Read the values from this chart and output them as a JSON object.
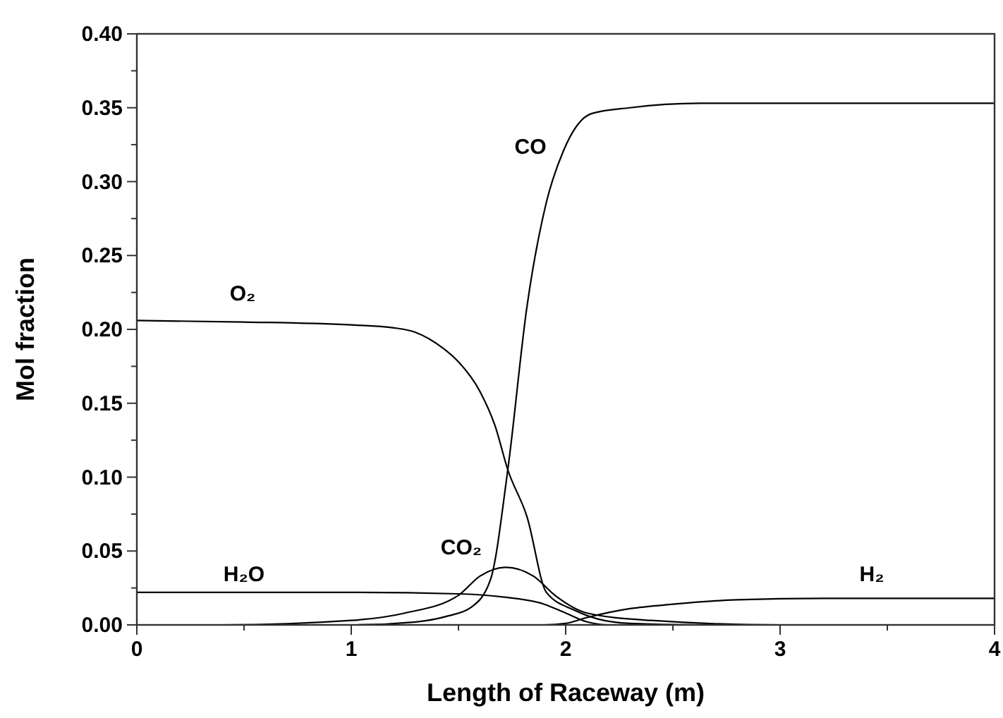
{
  "chart_data": {
    "type": "line",
    "xlabel": "Length of Raceway (m)",
    "ylabel": "Mol fraction",
    "xlim": [
      0,
      4
    ],
    "ylim": [
      0,
      0.4
    ],
    "xticks": [
      0,
      {
        "value": 0.5,
        "label": null
      },
      1,
      {
        "value": 1.5,
        "label": null
      },
      2,
      {
        "value": 2.5,
        "label": null
      },
      3,
      {
        "value": 3.5,
        "label": null
      },
      4
    ],
    "yticks": [
      {
        "value": 0,
        "label": "0.00"
      },
      {
        "value": 0.025,
        "label": null
      },
      0.05,
      {
        "value": 0.075,
        "label": null
      },
      {
        "value": 0.1,
        "label": "0.10"
      },
      {
        "value": 0.125,
        "label": null
      },
      0.15,
      {
        "value": 0.175,
        "label": null
      },
      {
        "value": 0.2,
        "label": "0.20"
      },
      {
        "value": 0.225,
        "label": null
      },
      0.25,
      {
        "value": 0.275,
        "label": null
      },
      {
        "value": 0.3,
        "label": "0.30"
      },
      {
        "value": 0.325,
        "label": null
      },
      0.35,
      {
        "value": 0.375,
        "label": null
      },
      {
        "value": 0.4,
        "label": "0.40"
      }
    ],
    "grid": false,
    "marker": "none",
    "line_style": "solid",
    "series": [
      {
        "name": "O₂",
        "color": "#000000",
        "x": [
          0,
          0.5,
          1.0,
          1.2,
          1.3,
          1.43,
          1.5,
          1.6,
          1.67,
          1.73,
          1.82,
          1.91,
          2.04,
          2.15,
          2.3,
          2.6,
          3,
          4
        ],
        "values": [
          0.206,
          0.205,
          0.203,
          0.201,
          0.198,
          0.187,
          0.178,
          0.158,
          0.135,
          0.105,
          0.073,
          0.022,
          0.01,
          0.004,
          0.001,
          0,
          0,
          0
        ]
      },
      {
        "name": "CO",
        "color": "#000000",
        "x": [
          0,
          1.0,
          1.3,
          1.45,
          1.56,
          1.65,
          1.73,
          1.82,
          1.91,
          1.99,
          2.12,
          2.3,
          2.63,
          3,
          4
        ],
        "values": [
          0,
          0,
          0.002,
          0.006,
          0.012,
          0.031,
          0.105,
          0.216,
          0.286,
          0.321,
          0.346,
          0.35,
          0.353,
          0.353,
          0.353
        ]
      },
      {
        "name": "CO₂",
        "color": "#000000",
        "x": [
          0,
          0.4,
          1.0,
          1.25,
          1.5,
          1.6,
          1.72,
          1.85,
          1.95,
          2.1,
          2.4,
          3,
          4
        ],
        "values": [
          0,
          0,
          0.003,
          0.008,
          0.02,
          0.033,
          0.039,
          0.033,
          0.02,
          0.008,
          0.003,
          0,
          0
        ]
      },
      {
        "name": "H₂O",
        "color": "#000000",
        "x": [
          0,
          1.0,
          1.5,
          1.7,
          1.9,
          2.0,
          2.1,
          2.2,
          3,
          4
        ],
        "values": [
          0.022,
          0.022,
          0.021,
          0.019,
          0.014,
          0.008,
          0.002,
          0,
          0,
          0
        ]
      },
      {
        "name": "H₂",
        "color": "#000000",
        "x": [
          0,
          1.9,
          2.0,
          2.1,
          2.3,
          2.5,
          2.8,
          3.2,
          4
        ],
        "values": [
          0,
          0,
          0.001,
          0.005,
          0.011,
          0.014,
          0.017,
          0.018,
          0.018
        ]
      }
    ]
  }
}
